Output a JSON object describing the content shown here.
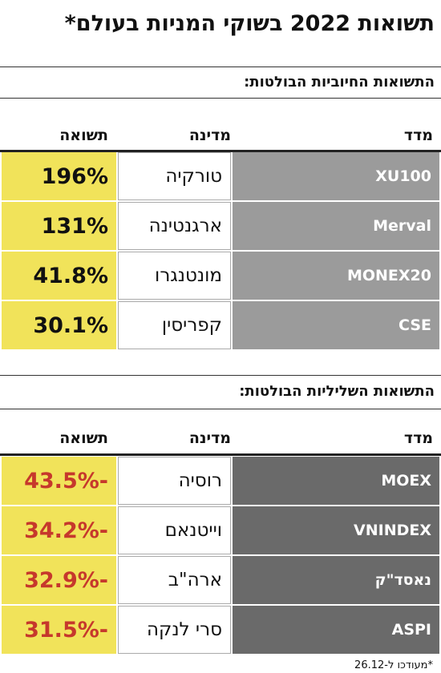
{
  "header": {
    "title": "תשואות 2022 בשוקי המניות בעולם*"
  },
  "sections": [
    {
      "heading": "התשואות החיוביות הבולטות:",
      "columns": [
        "מדד",
        "מדינה",
        "תשואה"
      ],
      "rows": [
        [
          "XU100",
          "טורקיה",
          "196%"
        ],
        [
          "Merval",
          "ארגנטינה",
          "131%"
        ],
        [
          "MONEX20",
          "מונטנגרו",
          "41.8%"
        ],
        [
          "CSE",
          "קפריסין",
          "30.1%"
        ]
      ]
    },
    {
      "heading": "התשואות השליליות הבולטות:",
      "columns": [
        "מדד",
        "מדינה",
        "תשואה"
      ],
      "rows": [
        [
          "MOEX",
          "רוסיה",
          "-43.5%"
        ],
        [
          "VNINDEX",
          "וייטנאם",
          "-34.2%"
        ],
        [
          "נאסד\"ק",
          "ארה\"ב",
          "-32.9%"
        ],
        [
          "ASPI",
          "סרי לנקה",
          "-31.5%"
        ]
      ]
    }
  ],
  "footnote": "*מעודכו ל-26.12"
}
